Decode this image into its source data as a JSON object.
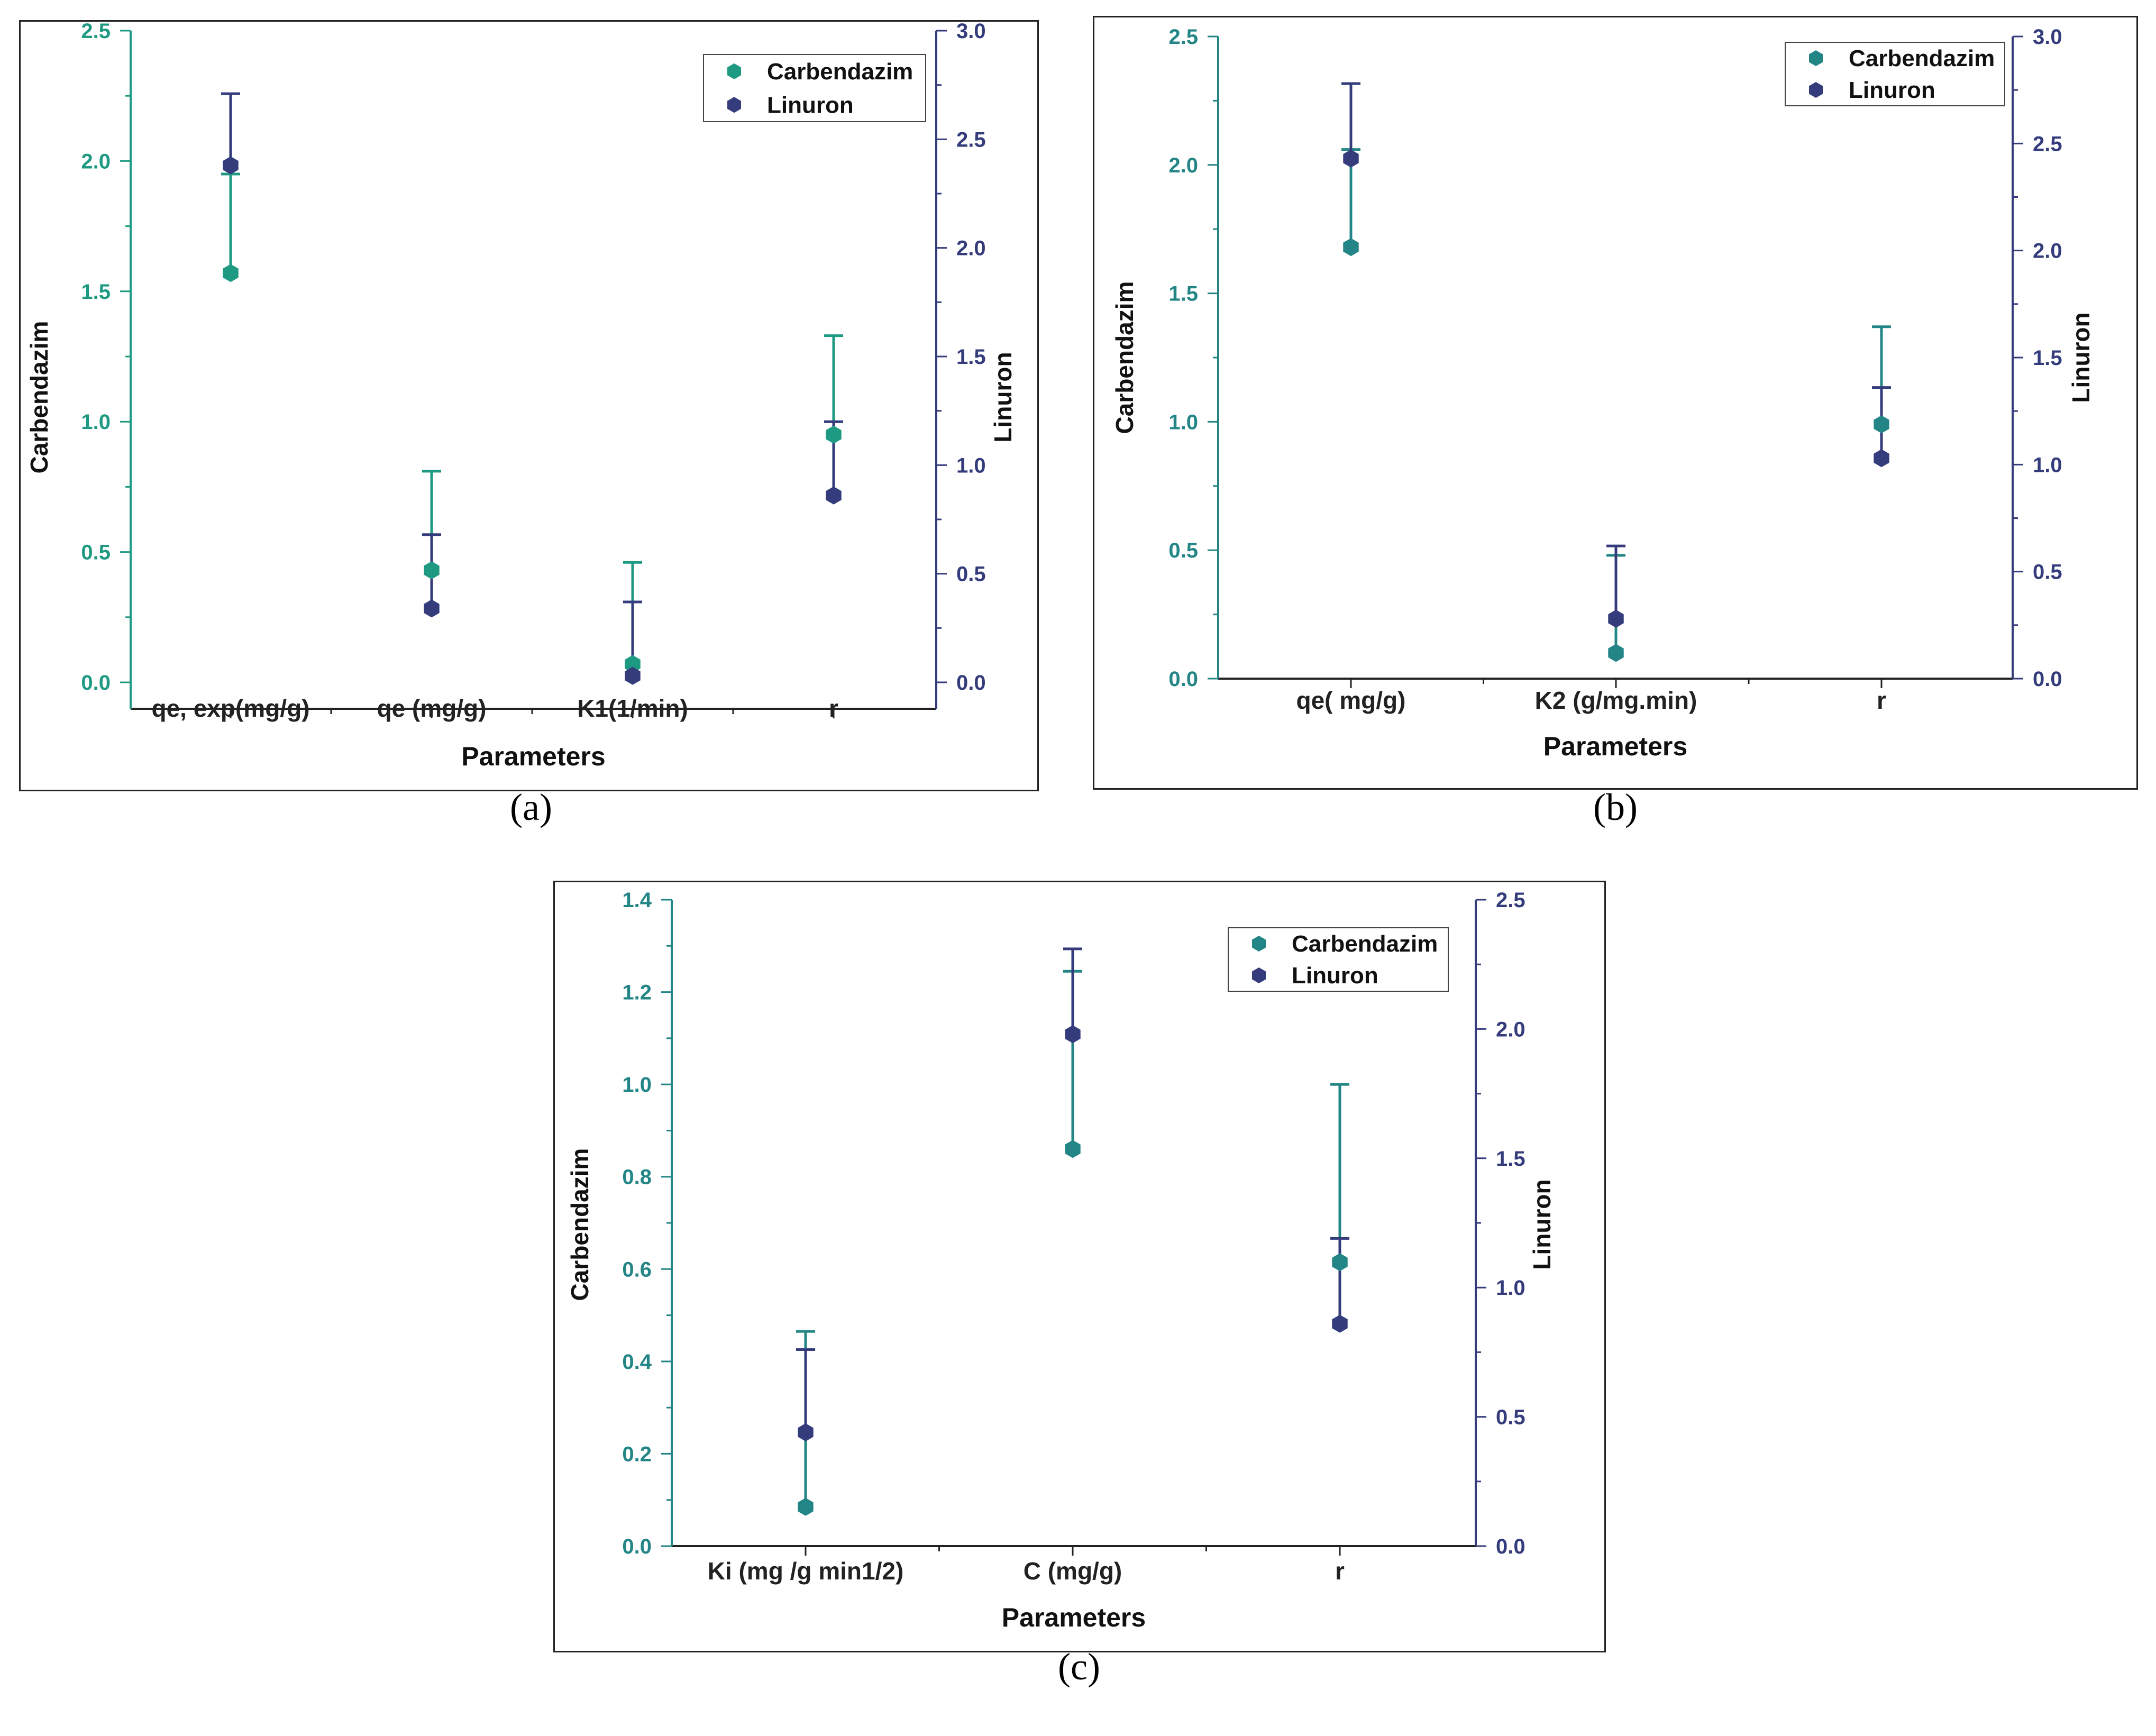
{
  "colors": {
    "carbendazim_a": "#1f9a82",
    "carbendazim_bc": "#238585",
    "linuron": "#343c7c",
    "frame": "#222222"
  },
  "chart_data": [
    {
      "type": "scatter",
      "panel_label": "(a)",
      "xlabel": "Parameters",
      "ylabel_left": "Carbendazim",
      "ylabel_right": "Linuron",
      "categories": [
        "qe, exp(mg/g)",
        "qe (mg/g)",
        "K1(1/min)",
        "r"
      ],
      "left_axis": {
        "min": 0.0,
        "max": 2.5,
        "ticks": [
          "0.0",
          "0.5",
          "1.0",
          "1.5",
          "2.0",
          "2.5"
        ]
      },
      "right_axis": {
        "min": 0.0,
        "max": 3.0,
        "ticks": [
          "0.0",
          "0.5",
          "1.0",
          "1.5",
          "2.0",
          "2.5",
          "3.0"
        ]
      },
      "legend": [
        "Carbendazim",
        "Linuron"
      ],
      "series": [
        {
          "name": "Carbendazim",
          "axis": "left",
          "values": [
            1.57,
            0.43,
            0.07,
            0.95
          ],
          "err_top": [
            1.95,
            0.81,
            0.46,
            1.33
          ]
        },
        {
          "name": "Linuron",
          "axis": "right",
          "values": [
            2.38,
            0.34,
            0.03,
            0.86
          ],
          "err_top": [
            2.71,
            0.68,
            0.37,
            1.2
          ]
        }
      ]
    },
    {
      "type": "scatter",
      "panel_label": "(b)",
      "xlabel": "Parameters",
      "ylabel_left": "Carbendazim",
      "ylabel_right": "Linuron",
      "categories": [
        "qe( mg/g)",
        "K2 (g/mg.min)",
        "r"
      ],
      "left_axis": {
        "min": 0.0,
        "max": 2.5,
        "ticks": [
          "0.0",
          "0.5",
          "1.0",
          "1.5",
          "2.0",
          "2.5"
        ]
      },
      "right_axis": {
        "min": 0.0,
        "max": 3.0,
        "ticks": [
          "0.0",
          "0.5",
          "1.0",
          "1.5",
          "2.0",
          "2.5",
          "3.0"
        ]
      },
      "legend": [
        "Carbendazim",
        "Linuron"
      ],
      "series": [
        {
          "name": "Carbendazim",
          "axis": "left",
          "values": [
            1.68,
            0.1,
            0.99
          ],
          "err_top": [
            2.06,
            0.48,
            1.37
          ]
        },
        {
          "name": "Linuron",
          "axis": "right",
          "values": [
            2.43,
            0.28,
            1.03
          ],
          "err_top": [
            2.78,
            0.62,
            1.36
          ]
        }
      ]
    },
    {
      "type": "scatter",
      "panel_label": "(c)",
      "xlabel": "Parameters",
      "ylabel_left": "Carbendazim",
      "ylabel_right": "Linuron",
      "categories": [
        "Ki (mg /g min1/2)",
        "C  (mg/g)",
        "r"
      ],
      "left_axis": {
        "min": 0.0,
        "max": 1.4,
        "ticks": [
          "0.0",
          "0.2",
          "0.4",
          "0.6",
          "0.8",
          "1.0",
          "1.2",
          "1.4"
        ]
      },
      "right_axis": {
        "min": 0.0,
        "max": 2.5,
        "ticks": [
          "0.0",
          "0.5",
          "1.0",
          "1.5",
          "2.0",
          "2.5"
        ]
      },
      "legend": [
        "Carbendazim",
        "Linuron"
      ],
      "series": [
        {
          "name": "Carbendazim",
          "axis": "left",
          "values": [
            0.085,
            0.86,
            0.615
          ],
          "err_top": [
            0.465,
            1.245,
            1.0
          ]
        },
        {
          "name": "Linuron",
          "axis": "right",
          "values": [
            0.44,
            1.98,
            0.86
          ],
          "err_top": [
            0.76,
            2.31,
            1.19
          ]
        }
      ]
    }
  ]
}
